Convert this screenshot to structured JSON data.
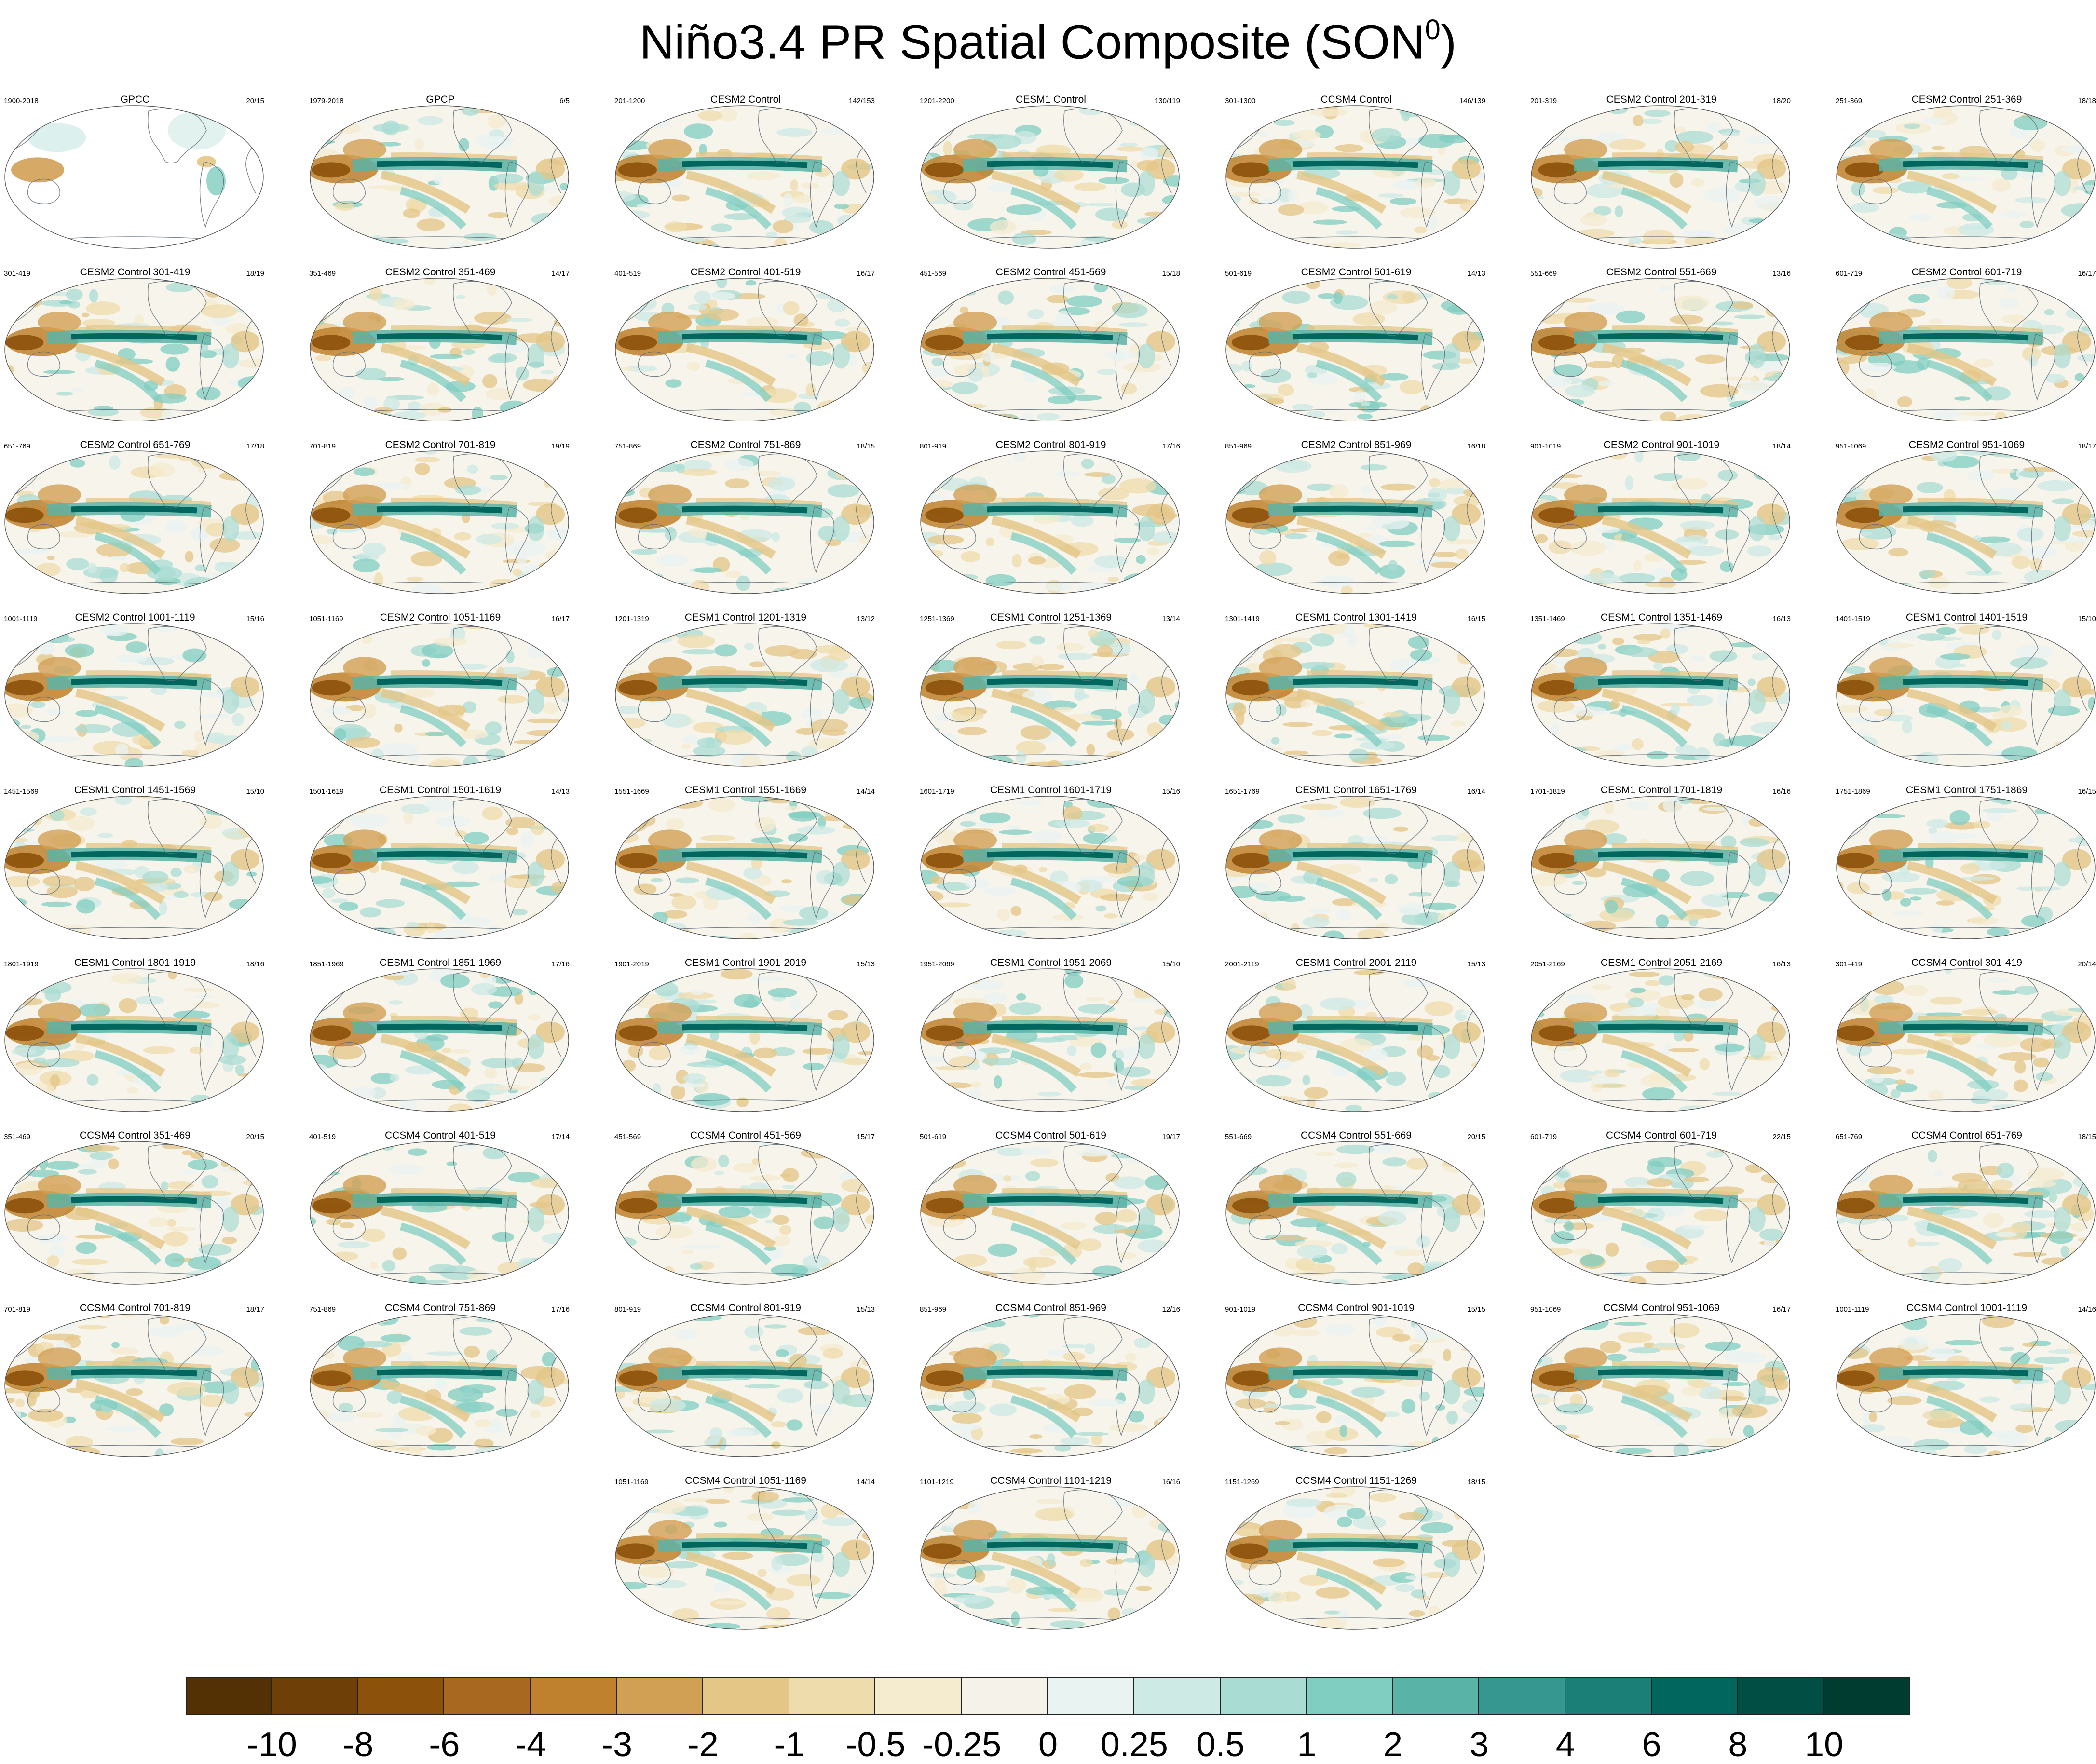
{
  "title": {
    "text": "Niño3.4 PR Spatial Composite (SON",
    "superscript": "0",
    "suffix": ")"
  },
  "panels": [
    {
      "title": "GPCC",
      "left": "1900-2018",
      "right": "20/15",
      "masked": true
    },
    {
      "title": "GPCP",
      "left": "1979-2018",
      "right": "6/5"
    },
    {
      "title": "CESM2 Control",
      "left": "201-1200",
      "right": "142/153"
    },
    {
      "title": "CESM1 Control",
      "left": "1201-2200",
      "right": "130/119"
    },
    {
      "title": "CCSM4 Control",
      "left": "301-1300",
      "right": "146/139"
    },
    {
      "title": "CESM2 Control 201-319",
      "left": "201-319",
      "right": "18/20"
    },
    {
      "title": "CESM2 Control 251-369",
      "left": "251-369",
      "right": "18/18"
    },
    {
      "title": "CESM2 Control 301-419",
      "left": "301-419",
      "right": "18/19"
    },
    {
      "title": "CESM2 Control 351-469",
      "left": "351-469",
      "right": "14/17"
    },
    {
      "title": "CESM2 Control 401-519",
      "left": "401-519",
      "right": "16/17"
    },
    {
      "title": "CESM2 Control 451-569",
      "left": "451-569",
      "right": "15/18"
    },
    {
      "title": "CESM2 Control 501-619",
      "left": "501-619",
      "right": "14/13"
    },
    {
      "title": "CESM2 Control 551-669",
      "left": "551-669",
      "right": "13/16"
    },
    {
      "title": "CESM2 Control 601-719",
      "left": "601-719",
      "right": "16/17"
    },
    {
      "title": "CESM2 Control 651-769",
      "left": "651-769",
      "right": "17/18"
    },
    {
      "title": "CESM2 Control 701-819",
      "left": "701-819",
      "right": "19/19"
    },
    {
      "title": "CESM2 Control 751-869",
      "left": "751-869",
      "right": "18/15"
    },
    {
      "title": "CESM2 Control 801-919",
      "left": "801-919",
      "right": "17/16"
    },
    {
      "title": "CESM2 Control 851-969",
      "left": "851-969",
      "right": "16/18"
    },
    {
      "title": "CESM2 Control 901-1019",
      "left": "901-1019",
      "right": "18/14"
    },
    {
      "title": "CESM2 Control 951-1069",
      "left": "951-1069",
      "right": "18/17"
    },
    {
      "title": "CESM2 Control 1001-1119",
      "left": "1001-1119",
      "right": "15/16"
    },
    {
      "title": "CESM2 Control 1051-1169",
      "left": "1051-1169",
      "right": "16/17"
    },
    {
      "title": "CESM1 Control 1201-1319",
      "left": "1201-1319",
      "right": "13/12"
    },
    {
      "title": "CESM1 Control 1251-1369",
      "left": "1251-1369",
      "right": "13/14"
    },
    {
      "title": "CESM1 Control 1301-1419",
      "left": "1301-1419",
      "right": "16/15"
    },
    {
      "title": "CESM1 Control 1351-1469",
      "left": "1351-1469",
      "right": "16/13"
    },
    {
      "title": "CESM1 Control 1401-1519",
      "left": "1401-1519",
      "right": "15/10"
    },
    {
      "title": "CESM1 Control 1451-1569",
      "left": "1451-1569",
      "right": "15/10"
    },
    {
      "title": "CESM1 Control 1501-1619",
      "left": "1501-1619",
      "right": "14/13"
    },
    {
      "title": "CESM1 Control 1551-1669",
      "left": "1551-1669",
      "right": "14/14"
    },
    {
      "title": "CESM1 Control 1601-1719",
      "left": "1601-1719",
      "right": "15/16"
    },
    {
      "title": "CESM1 Control 1651-1769",
      "left": "1651-1769",
      "right": "16/14"
    },
    {
      "title": "CESM1 Control 1701-1819",
      "left": "1701-1819",
      "right": "16/16"
    },
    {
      "title": "CESM1 Control 1751-1869",
      "left": "1751-1869",
      "right": "16/15"
    },
    {
      "title": "CESM1 Control 1801-1919",
      "left": "1801-1919",
      "right": "18/16"
    },
    {
      "title": "CESM1 Control 1851-1969",
      "left": "1851-1969",
      "right": "17/16"
    },
    {
      "title": "CESM1 Control 1901-2019",
      "left": "1901-2019",
      "right": "15/13"
    },
    {
      "title": "CESM1 Control 1951-2069",
      "left": "1951-2069",
      "right": "15/10"
    },
    {
      "title": "CESM1 Control 2001-2119",
      "left": "2001-2119",
      "right": "15/13"
    },
    {
      "title": "CESM1 Control 2051-2169",
      "left": "2051-2169",
      "right": "16/13"
    },
    {
      "title": "CCSM4 Control 301-419",
      "left": "301-419",
      "right": "20/14"
    },
    {
      "title": "CCSM4 Control 351-469",
      "left": "351-469",
      "right": "20/15"
    },
    {
      "title": "CCSM4 Control 401-519",
      "left": "401-519",
      "right": "17/14"
    },
    {
      "title": "CCSM4 Control 451-569",
      "left": "451-569",
      "right": "15/17"
    },
    {
      "title": "CCSM4 Control 501-619",
      "left": "501-619",
      "right": "19/17"
    },
    {
      "title": "CCSM4 Control 551-669",
      "left": "551-669",
      "right": "20/15"
    },
    {
      "title": "CCSM4 Control 601-719",
      "left": "601-719",
      "right": "22/15"
    },
    {
      "title": "CCSM4 Control 651-769",
      "left": "651-769",
      "right": "18/15"
    },
    {
      "title": "CCSM4 Control 701-819",
      "left": "701-819",
      "right": "18/17"
    },
    {
      "title": "CCSM4 Control 751-869",
      "left": "751-869",
      "right": "17/16"
    },
    {
      "title": "CCSM4 Control 801-919",
      "left": "801-919",
      "right": "15/13"
    },
    {
      "title": "CCSM4 Control 851-969",
      "left": "851-969",
      "right": "12/16"
    },
    {
      "title": "CCSM4 Control 901-1019",
      "left": "901-1019",
      "right": "15/15"
    },
    {
      "title": "CCSM4 Control 951-1069",
      "left": "951-1069",
      "right": "16/17"
    },
    {
      "title": "CCSM4 Control 1001-1119",
      "left": "1001-1119",
      "right": "14/16"
    },
    {
      "title": "CCSM4 Control 1051-1169",
      "left": "1051-1169",
      "right": "14/14"
    },
    {
      "title": "CCSM4 Control 1101-1219",
      "left": "1101-1219",
      "right": "16/16"
    },
    {
      "title": "CCSM4 Control 1151-1269",
      "left": "1151-1269",
      "right": "18/15"
    }
  ],
  "colorbar": {
    "colors": [
      "#543005",
      "#6e3f07",
      "#8c510a",
      "#a8681f",
      "#bf812d",
      "#d2a055",
      "#e4c686",
      "#efdcac",
      "#f5ebcf",
      "#f5f2ea",
      "#e9f3f2",
      "#cdeae5",
      "#a9dcd3",
      "#80cdc1",
      "#5ab3a7",
      "#35978f",
      "#1c7f77",
      "#01665e",
      "#014e45",
      "#003c30"
    ],
    "labels": [
      "-10",
      "-8",
      "-6",
      "-4",
      "-3",
      "-2",
      "-1",
      "-0.5",
      "-0.25",
      "0",
      "0.25",
      "0.5",
      "1",
      "2",
      "3",
      "4",
      "6",
      "8",
      "10"
    ]
  }
}
